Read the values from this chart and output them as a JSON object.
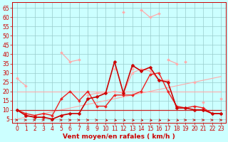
{
  "x": [
    0,
    1,
    2,
    3,
    4,
    5,
    6,
    7,
    8,
    9,
    10,
    11,
    12,
    13,
    14,
    15,
    16,
    17,
    18,
    19,
    20,
    21,
    22,
    23
  ],
  "series": [
    {
      "name": "rafales_high_light",
      "color": "#ffaaaa",
      "linewidth": 0.9,
      "marker": "D",
      "markersize": 2.0,
      "zorder": 2,
      "values": [
        27,
        23,
        null,
        null,
        null,
        41,
        36,
        37,
        null,
        null,
        null,
        null,
        63,
        null,
        64,
        60,
        62,
        null,
        null,
        36,
        null,
        null,
        null,
        16
      ]
    },
    {
      "name": "rafales_med_light",
      "color": "#ffaaaa",
      "linewidth": 0.9,
      "marker": "D",
      "markersize": 2.0,
      "zorder": 2,
      "values": [
        null,
        null,
        null,
        null,
        null,
        null,
        null,
        null,
        null,
        null,
        null,
        32,
        null,
        32,
        null,
        null,
        null,
        37,
        35,
        null,
        25,
        null,
        null,
        null
      ]
    },
    {
      "name": "moyen_light_full",
      "color": "#ffaaaa",
      "linewidth": 0.9,
      "marker": "D",
      "markersize": 2.0,
      "zorder": 2,
      "values": [
        10,
        null,
        null,
        null,
        null,
        null,
        null,
        null,
        18,
        19,
        19,
        20,
        19,
        30,
        32,
        31,
        26,
        26,
        null,
        null,
        null,
        14,
        null,
        null
      ]
    },
    {
      "name": "trend_line1",
      "color": "#ffaaaa",
      "linewidth": 0.8,
      "marker": null,
      "markersize": 0,
      "zorder": 1,
      "values": [
        5,
        6,
        7,
        8,
        9,
        10,
        11,
        12,
        13,
        14,
        15,
        16,
        17,
        18,
        19,
        20,
        21,
        22,
        23,
        24,
        25,
        26,
        27,
        28
      ]
    },
    {
      "name": "trend_line2",
      "color": "#ffaaaa",
      "linewidth": 0.8,
      "marker": null,
      "markersize": 0,
      "zorder": 1,
      "values": [
        20,
        20,
        20,
        20,
        20,
        20,
        20,
        20,
        20,
        20,
        20,
        20,
        20,
        20,
        20,
        20,
        20,
        20,
        20,
        20,
        20,
        20,
        20,
        20
      ]
    },
    {
      "name": "flat_dark",
      "color": "#cc2222",
      "linewidth": 0.9,
      "marker": null,
      "markersize": 0,
      "zorder": 3,
      "values": [
        10,
        10,
        10,
        10,
        10,
        10,
        10,
        10,
        10,
        10,
        10,
        10,
        10,
        10,
        10,
        10,
        10,
        10,
        10,
        10,
        10,
        10,
        10,
        10
      ]
    },
    {
      "name": "moyen_main",
      "color": "#cc0000",
      "linewidth": 1.2,
      "marker": "D",
      "markersize": 2.5,
      "zorder": 5,
      "values": [
        10,
        7,
        6,
        6,
        5,
        7,
        8,
        8,
        16,
        17,
        19,
        36,
        19,
        34,
        31,
        33,
        26,
        25,
        11,
        11,
        10,
        10,
        8,
        8
      ]
    },
    {
      "name": "rafales_main",
      "color": "#ee2222",
      "linewidth": 1.0,
      "marker": "D",
      "markersize": 2.0,
      "zorder": 4,
      "values": [
        10,
        8,
        7,
        8,
        7,
        16,
        20,
        15,
        20,
        12,
        12,
        18,
        18,
        18,
        20,
        29,
        30,
        20,
        12,
        11,
        12,
        11,
        8,
        8
      ]
    }
  ],
  "ylim": [
    3,
    68
  ],
  "yticks": [
    5,
    10,
    15,
    20,
    25,
    30,
    35,
    40,
    45,
    50,
    55,
    60,
    65
  ],
  "xlim": [
    -0.5,
    23.5
  ],
  "xticks": [
    0,
    1,
    2,
    3,
    4,
    5,
    6,
    7,
    8,
    9,
    10,
    11,
    12,
    13,
    14,
    15,
    16,
    17,
    18,
    19,
    20,
    21,
    22,
    23
  ],
  "xlabel": "Vent moyen/en rafales ( km/h )",
  "xlabel_color": "#cc0000",
  "xlabel_fontsize": 6.5,
  "background_color": "#ccffff",
  "grid_color": "#99cccc",
  "tick_color": "#cc0000",
  "tick_fontsize": 5.5,
  "arrow_color": "#cc0000",
  "arrow_dirs": [
    1,
    1,
    1,
    1,
    1,
    1,
    1,
    1,
    1,
    1,
    2,
    2,
    2,
    2,
    2,
    2,
    2,
    2,
    2,
    1,
    1,
    1,
    1,
    1
  ]
}
